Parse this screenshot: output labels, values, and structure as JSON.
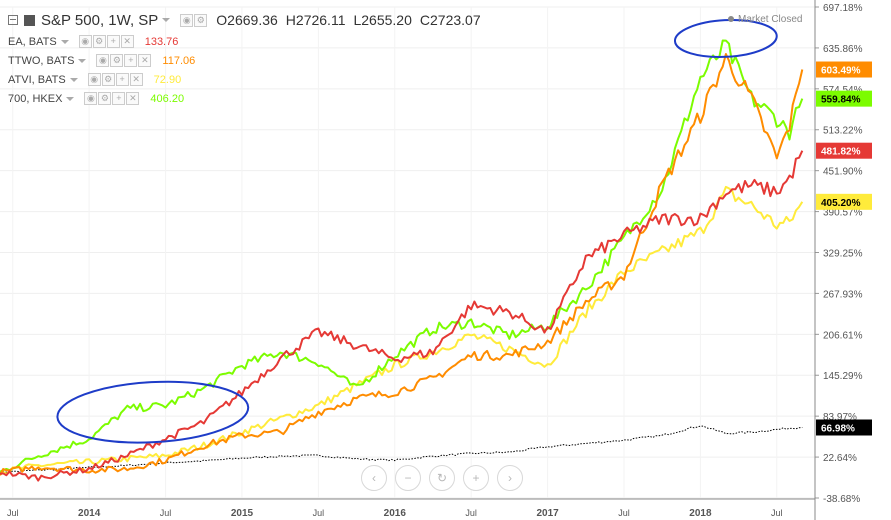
{
  "legend": {
    "main_symbol": "S&P 500, 1W, SP",
    "open": "O2669.36",
    "high": "H2726.11",
    "low": "L2655.20",
    "close": "C2723.07",
    "symbols": [
      {
        "label": "EA, BATS",
        "value": "133.76",
        "color": "#e53935"
      },
      {
        "label": "TTWO, BATS",
        "value": "117.06",
        "color": "#ff8c00"
      },
      {
        "label": "ATVI, BATS",
        "value": "72.90",
        "color": "#ffeb3b"
      },
      {
        "label": "700, HKEX",
        "value": "406.20",
        "color": "#7cfc00"
      }
    ]
  },
  "status": "Market Closed",
  "nav_icons": [
    "chevron-left-icon",
    "minus-icon",
    "reset-icon",
    "plus-icon",
    "chevron-right-icon"
  ],
  "chart_data": {
    "type": "line",
    "y_unit": "percent",
    "ylim": [
      -38.68,
      697.18
    ],
    "y_ticks": [
      "697.18%",
      "635.86%",
      "574.54%",
      "513.22%",
      "451.90%",
      "390.57%",
      "329.25%",
      "267.93%",
      "206.61%",
      "145.29%",
      "83.97%",
      "22.64%",
      "-38.68%"
    ],
    "x_ticks": [
      "Jul",
      "2014",
      "Jul",
      "2015",
      "Jul",
      "2016",
      "Jul",
      "2017",
      "Jul",
      "2018",
      "Jul"
    ],
    "x_range": [
      "2013-06",
      "2018-10"
    ],
    "last_value_labels": [
      "603.49%",
      "559.84%",
      "481.82%",
      "405.20%",
      "66.98%"
    ],
    "series": [
      {
        "name": "TTWO, BATS",
        "color": "#ff8c00",
        "last_label": "603.49%",
        "x": [
          "2013-06",
          "2013-09",
          "2014-01",
          "2014-04",
          "2014-07",
          "2014-10",
          "2015-01",
          "2015-04",
          "2015-07",
          "2015-10",
          "2016-01",
          "2016-04",
          "2016-07",
          "2016-10",
          "2017-01",
          "2017-04",
          "2017-07",
          "2017-10",
          "2018-01",
          "2018-03",
          "2018-05",
          "2018-07",
          "2018-08",
          "2018-09"
        ],
        "values": [
          0,
          8,
          3,
          5,
          18,
          40,
          55,
          60,
          90,
          110,
          120,
          140,
          175,
          175,
          195,
          255,
          295,
          430,
          535,
          620,
          560,
          470,
          520,
          603.49
        ]
      },
      {
        "name": "700, HKEX",
        "color": "#7cfc00",
        "last_label": "559.84%",
        "x": [
          "2013-06",
          "2013-09",
          "2014-01",
          "2014-04",
          "2014-07",
          "2014-10",
          "2015-01",
          "2015-04",
          "2015-07",
          "2015-10",
          "2016-01",
          "2016-04",
          "2016-07",
          "2016-10",
          "2017-01",
          "2017-04",
          "2017-07",
          "2017-10",
          "2018-01",
          "2018-03",
          "2018-05",
          "2018-07",
          "2018-08",
          "2018-09"
        ],
        "values": [
          0,
          25,
          50,
          95,
          100,
          125,
          160,
          180,
          165,
          125,
          175,
          215,
          225,
          205,
          220,
          275,
          350,
          425,
          590,
          640,
          560,
          530,
          510,
          559.84
        ]
      },
      {
        "name": "EA, BATS",
        "color": "#e53935",
        "last_label": "481.82%",
        "x": [
          "2013-06",
          "2013-09",
          "2014-01",
          "2014-04",
          "2014-07",
          "2014-10",
          "2015-01",
          "2015-04",
          "2015-07",
          "2015-10",
          "2016-01",
          "2016-04",
          "2016-07",
          "2016-10",
          "2017-01",
          "2017-04",
          "2017-07",
          "2017-10",
          "2018-01",
          "2018-03",
          "2018-05",
          "2018-07",
          "2018-08",
          "2018-09"
        ],
        "values": [
          0,
          -8,
          5,
          25,
          50,
          75,
          120,
          170,
          210,
          190,
          170,
          180,
          250,
          240,
          210,
          320,
          355,
          380,
          380,
          420,
          430,
          420,
          440,
          481.82
        ]
      },
      {
        "name": "ATVI, BATS",
        "color": "#ffeb3b",
        "last_label": "405.20%",
        "x": [
          "2013-06",
          "2013-09",
          "2014-01",
          "2014-04",
          "2014-07",
          "2014-10",
          "2015-01",
          "2015-04",
          "2015-07",
          "2015-10",
          "2016-01",
          "2016-04",
          "2016-07",
          "2016-10",
          "2017-01",
          "2017-04",
          "2017-07",
          "2017-10",
          "2018-01",
          "2018-03",
          "2018-05",
          "2018-07",
          "2018-08",
          "2018-09"
        ],
        "values": [
          0,
          10,
          15,
          20,
          25,
          40,
          60,
          80,
          100,
          130,
          160,
          180,
          205,
          185,
          160,
          240,
          300,
          330,
          360,
          420,
          400,
          370,
          375,
          405.2
        ]
      },
      {
        "name": "S&P 500, 1W, SP",
        "color": "#000000",
        "last_label": "66.98%",
        "x": [
          "2013-06",
          "2013-09",
          "2014-01",
          "2014-04",
          "2014-07",
          "2014-10",
          "2015-01",
          "2015-04",
          "2015-07",
          "2015-10",
          "2016-01",
          "2016-04",
          "2016-07",
          "2016-10",
          "2017-01",
          "2017-04",
          "2017-07",
          "2017-10",
          "2018-01",
          "2018-03",
          "2018-05",
          "2018-07",
          "2018-08",
          "2018-09"
        ],
        "values": [
          0,
          3,
          7,
          10,
          14,
          17,
          21,
          24,
          25,
          20,
          18,
          24,
          28,
          30,
          38,
          43,
          48,
          55,
          70,
          58,
          60,
          64,
          66,
          66.98
        ]
      }
    ]
  },
  "annotations": [
    {
      "shape": "ellipse",
      "color": "#1e3cc8",
      "center": {
        "x": "2014-06",
        "y": 90
      },
      "width_months": 15,
      "height_pct": 90
    },
    {
      "shape": "ellipse",
      "color": "#1e3cc8",
      "center": {
        "x": "2018-03",
        "y": 650
      },
      "width_months": 8,
      "height_pct": 55
    }
  ]
}
